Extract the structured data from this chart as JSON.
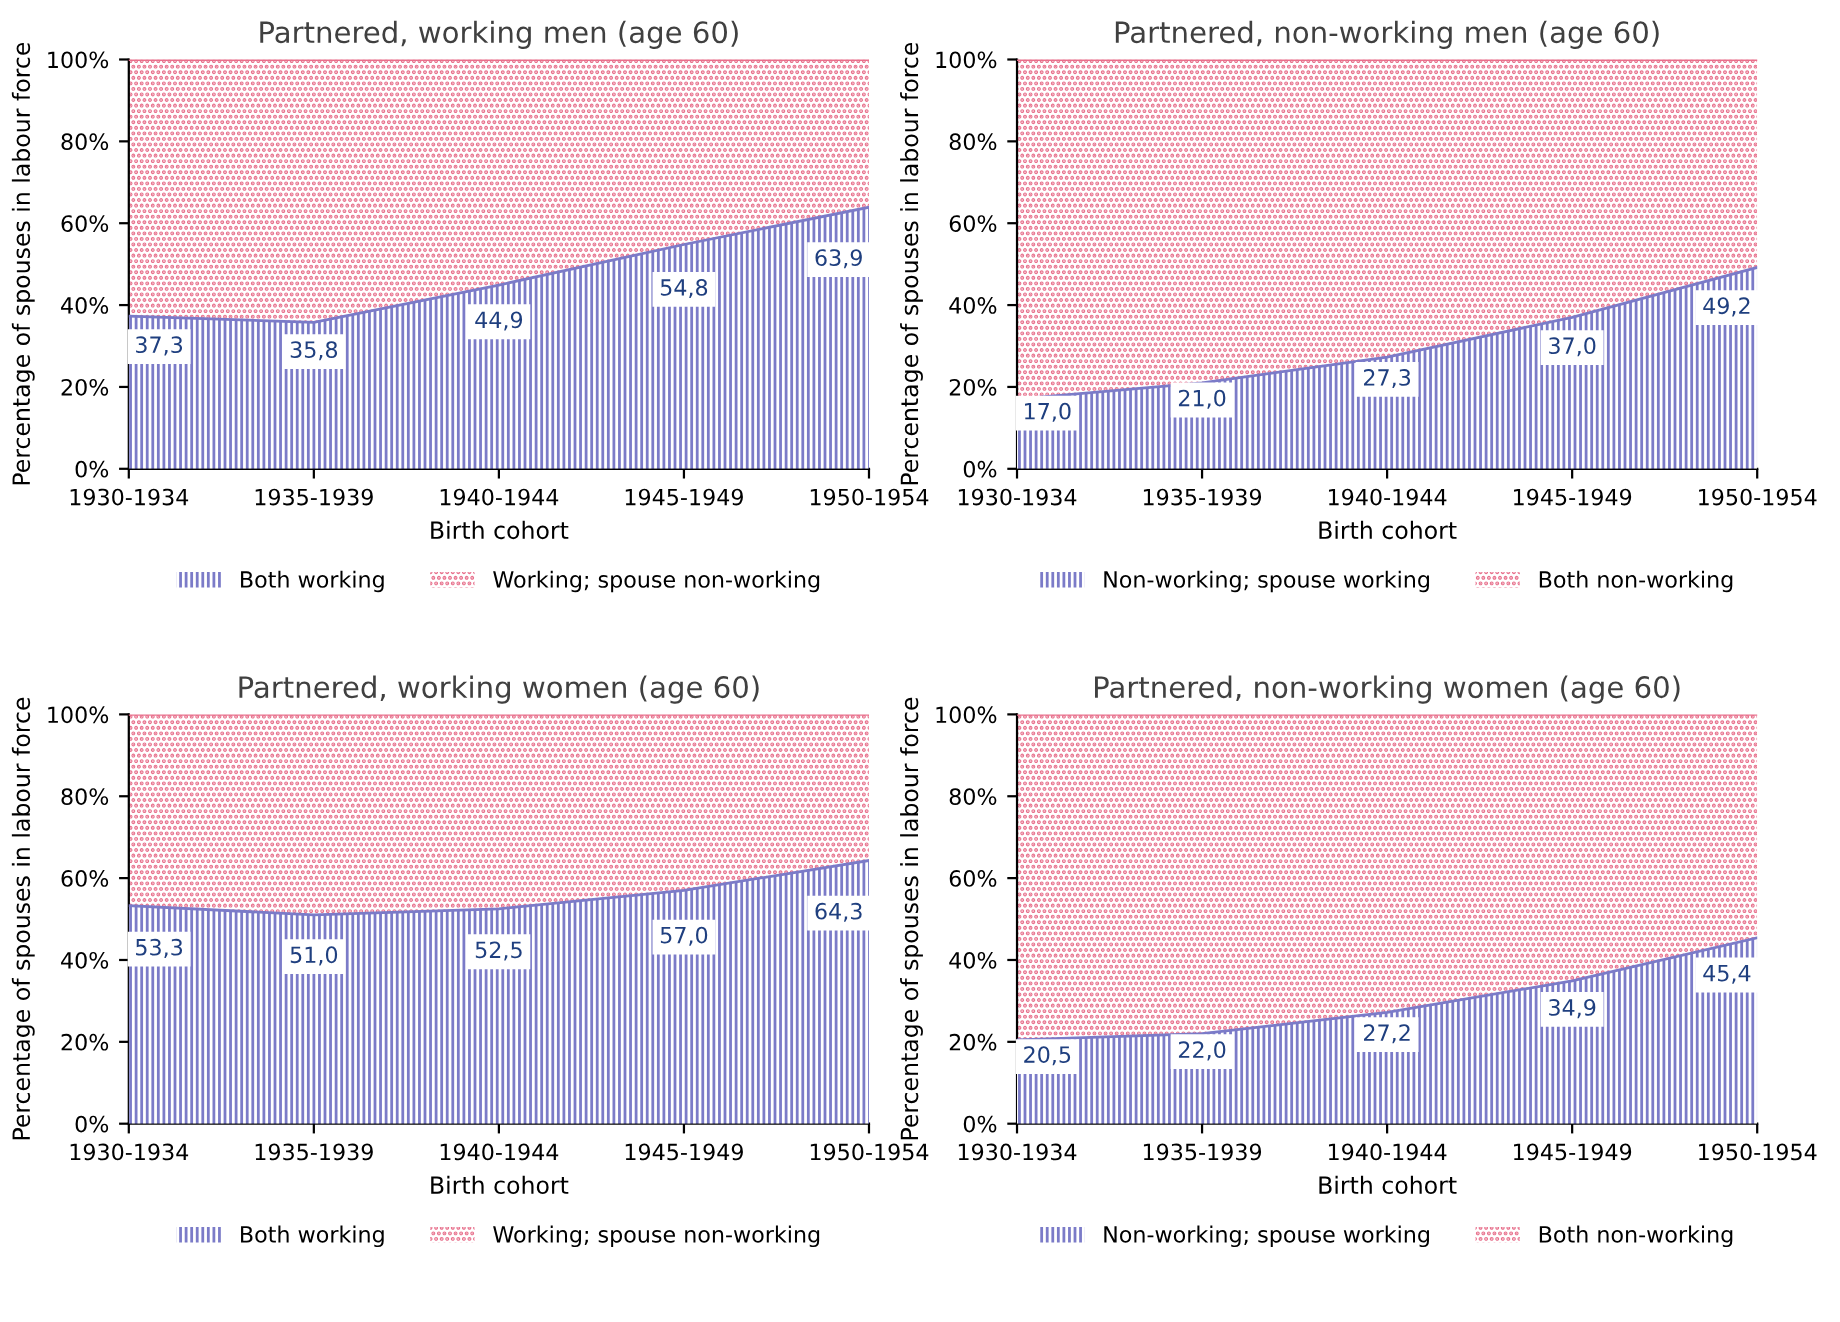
{
  "chart_data": [
    {
      "type": "area",
      "stacked": true,
      "title": "Partnered, working men (age 60)",
      "xlabel": "Birth cohort",
      "ylabel": "Percentage of spouses in labour force",
      "categories": [
        "1930-1934",
        "1935-1939",
        "1940-1944",
        "1945-1949",
        "1950-1954"
      ],
      "series": [
        {
          "name": "Both working",
          "color": "#7b7bc8",
          "values": [
            37.3,
            35.8,
            44.9,
            54.8,
            63.9
          ],
          "value_labels": [
            "37,3",
            "35,8",
            "44,9",
            "54,8",
            "63,9"
          ]
        },
        {
          "name": "Working; spouse non-working",
          "color": "#e8708c",
          "values": [
            62.7,
            64.2,
            55.1,
            45.2,
            36.1
          ]
        }
      ],
      "ylim": [
        0,
        100
      ],
      "yticks": [
        {
          "value": 0,
          "label": "0%"
        },
        {
          "value": 20,
          "label": "20%"
        },
        {
          "value": 40,
          "label": "40%"
        },
        {
          "value": 60,
          "label": "60%"
        },
        {
          "value": 80,
          "label": "80%"
        },
        {
          "value": 100,
          "label": "100%"
        }
      ],
      "grid": false,
      "legend": "bottom"
    },
    {
      "type": "area",
      "stacked": true,
      "title": "Partnered, non-working men (age 60)",
      "xlabel": "Birth cohort",
      "ylabel": "Percentage of spouses in labour force",
      "categories": [
        "1930-1934",
        "1935-1939",
        "1940-1944",
        "1945-1949",
        "1950-1954"
      ],
      "series": [
        {
          "name": "Non-working; spouse working",
          "color": "#7b7bc8",
          "values": [
            17.0,
            21.0,
            27.3,
            37.0,
            49.2
          ],
          "value_labels": [
            "17,0",
            "21,0",
            "27,3",
            "37,0",
            "49,2"
          ]
        },
        {
          "name": "Both non-working",
          "color": "#e8708c",
          "values": [
            83.0,
            79.0,
            72.7,
            63.0,
            50.8
          ]
        }
      ],
      "ylim": [
        0,
        100
      ],
      "yticks": [
        {
          "value": 0,
          "label": "0%"
        },
        {
          "value": 20,
          "label": "20%"
        },
        {
          "value": 40,
          "label": "40%"
        },
        {
          "value": 60,
          "label": "60%"
        },
        {
          "value": 80,
          "label": "80%"
        },
        {
          "value": 100,
          "label": "100%"
        }
      ],
      "grid": false,
      "legend": "bottom"
    },
    {
      "type": "area",
      "stacked": true,
      "title": "Partnered, working women (age 60)",
      "xlabel": "Birth cohort",
      "ylabel": "Percentage of spouses in labour force",
      "categories": [
        "1930-1934",
        "1935-1939",
        "1940-1944",
        "1945-1949",
        "1950-1954"
      ],
      "series": [
        {
          "name": "Both working",
          "color": "#7b7bc8",
          "values": [
            53.3,
            51.0,
            52.5,
            57.0,
            64.3
          ],
          "value_labels": [
            "53,3",
            "51,0",
            "52,5",
            "57,0",
            "64,3"
          ]
        },
        {
          "name": "Working; spouse non-working",
          "color": "#e8708c",
          "values": [
            46.7,
            49.0,
            47.5,
            43.0,
            35.7
          ]
        }
      ],
      "ylim": [
        0,
        100
      ],
      "yticks": [
        {
          "value": 0,
          "label": "0%"
        },
        {
          "value": 20,
          "label": "20%"
        },
        {
          "value": 40,
          "label": "40%"
        },
        {
          "value": 60,
          "label": "60%"
        },
        {
          "value": 80,
          "label": "80%"
        },
        {
          "value": 100,
          "label": "100%"
        }
      ],
      "grid": false,
      "legend": "bottom"
    },
    {
      "type": "area",
      "stacked": true,
      "title": "Partnered, non-working women (age 60)",
      "xlabel": "Birth cohort",
      "ylabel": "Percentage of spouses in labour force",
      "categories": [
        "1930-1934",
        "1935-1939",
        "1940-1944",
        "1945-1949",
        "1950-1954"
      ],
      "series": [
        {
          "name": "Non-working; spouse working",
          "color": "#7b7bc8",
          "values": [
            20.5,
            22.0,
            27.2,
            34.9,
            45.4
          ],
          "value_labels": [
            "20,5",
            "22,0",
            "27,2",
            "34,9",
            "45,4"
          ]
        },
        {
          "name": "Both non-working",
          "color": "#e8708c",
          "values": [
            79.5,
            78.0,
            72.8,
            65.1,
            54.6
          ]
        }
      ],
      "ylim": [
        0,
        100
      ],
      "yticks": [
        {
          "value": 0,
          "label": "0%"
        },
        {
          "value": 20,
          "label": "20%"
        },
        {
          "value": 40,
          "label": "40%"
        },
        {
          "value": 60,
          "label": "60%"
        },
        {
          "value": 80,
          "label": "80%"
        },
        {
          "value": 100,
          "label": "100%"
        }
      ],
      "grid": false,
      "legend": "bottom"
    }
  ]
}
